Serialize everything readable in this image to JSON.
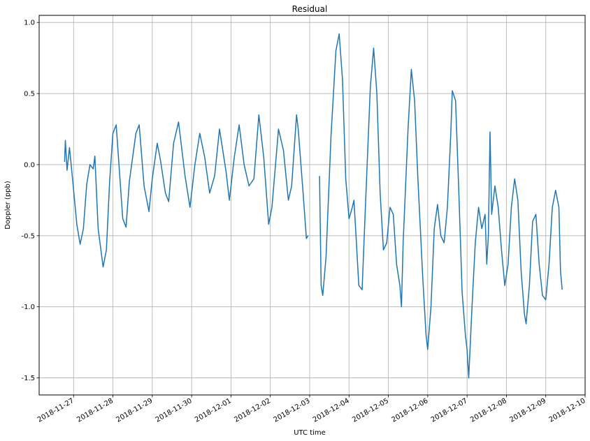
{
  "chart_data": {
    "type": "line",
    "title": "Residual",
    "xlabel": "UTC time",
    "ylabel": "Doppler (ppb)",
    "x_axis_type": "date",
    "xlim": [
      "2018-11-26 03:00",
      "2018-12-10 00:00"
    ],
    "ylim": [
      -1.62,
      1.05
    ],
    "xticks": [
      "2018-11-27",
      "2018-11-28",
      "2018-11-29",
      "2018-11-30",
      "2018-12-01",
      "2018-12-02",
      "2018-12-03",
      "2018-12-04",
      "2018-12-05",
      "2018-12-06",
      "2018-12-07",
      "2018-12-08",
      "2018-12-09",
      "2018-12-10"
    ],
    "yticks": [
      1.0,
      0.5,
      0.0,
      -0.5,
      -1.0,
      -1.5
    ],
    "grid": true,
    "series": [
      {
        "name": "",
        "color": "#1f77b4",
        "segments": [
          [
            [
              "2018-11-26 18:30",
              0.02
            ],
            [
              "2018-11-26 19:00",
              0.17
            ],
            [
              "2018-11-26 20:00",
              -0.04
            ],
            [
              "2018-11-26 21:30",
              0.12
            ],
            [
              "2018-11-27 00:00",
              -0.18
            ],
            [
              "2018-11-27 02:00",
              -0.42
            ],
            [
              "2018-11-27 04:00",
              -0.56
            ],
            [
              "2018-11-27 06:00",
              -0.45
            ],
            [
              "2018-11-27 08:00",
              -0.14
            ],
            [
              "2018-11-27 10:00",
              0.0
            ],
            [
              "2018-11-27 12:00",
              -0.03
            ],
            [
              "2018-11-27 13:00",
              0.06
            ],
            [
              "2018-11-27 15:00",
              -0.45
            ],
            [
              "2018-11-27 18:00",
              -0.72
            ],
            [
              "2018-11-27 20:00",
              -0.6
            ],
            [
              "2018-11-27 22:00",
              -0.12
            ],
            [
              "2018-11-28 00:00",
              0.22
            ],
            [
              "2018-11-28 02:00",
              0.28
            ],
            [
              "2018-11-28 06:00",
              -0.38
            ],
            [
              "2018-11-28 08:00",
              -0.44
            ],
            [
              "2018-11-28 10:00",
              -0.12
            ],
            [
              "2018-11-28 14:00",
              0.22
            ],
            [
              "2018-11-28 16:00",
              0.28
            ],
            [
              "2018-11-28 19:00",
              -0.15
            ],
            [
              "2018-11-28 22:00",
              -0.33
            ],
            [
              "2018-11-29 00:00",
              -0.1
            ],
            [
              "2018-11-29 03:00",
              0.15
            ],
            [
              "2018-11-29 05:00",
              0.03
            ],
            [
              "2018-11-29 08:00",
              -0.2
            ],
            [
              "2018-11-29 10:00",
              -0.26
            ],
            [
              "2018-11-29 13:00",
              0.15
            ],
            [
              "2018-11-29 16:00",
              0.3
            ],
            [
              "2018-11-29 20:00",
              -0.08
            ],
            [
              "2018-11-29 23:00",
              -0.3
            ],
            [
              "2018-11-30 02:00",
              0.0
            ],
            [
              "2018-11-30 05:00",
              0.22
            ],
            [
              "2018-11-30 08:00",
              0.05
            ],
            [
              "2018-11-30 11:00",
              -0.2
            ],
            [
              "2018-11-30 14:00",
              -0.08
            ],
            [
              "2018-11-30 17:00",
              0.25
            ],
            [
              "2018-11-30 21:00",
              -0.05
            ],
            [
              "2018-11-30 23:00",
              -0.25
            ],
            [
              "2018-12-01 02:00",
              0.05
            ],
            [
              "2018-12-01 05:00",
              0.28
            ],
            [
              "2018-12-01 08:00",
              0.0
            ],
            [
              "2018-12-01 11:00",
              -0.15
            ],
            [
              "2018-12-01 14:00",
              -0.1
            ],
            [
              "2018-12-01 17:00",
              0.35
            ],
            [
              "2018-12-01 20:00",
              0.05
            ],
            [
              "2018-12-01 23:00",
              -0.42
            ],
            [
              "2018-12-02 01:00",
              -0.3
            ],
            [
              "2018-12-02 05:00",
              0.25
            ],
            [
              "2018-12-02 08:00",
              0.1
            ],
            [
              "2018-12-02 11:00",
              -0.25
            ],
            [
              "2018-12-02 13:00",
              -0.15
            ],
            [
              "2018-12-02 16:00",
              0.35
            ],
            [
              "2018-12-02 17:00",
              0.25
            ],
            [
              "2018-12-02 20:00",
              -0.2
            ],
            [
              "2018-12-02 22:00",
              -0.52
            ],
            [
              "2018-12-02 23:00",
              -0.5
            ]
          ],
          [
            [
              "2018-12-03 06:00",
              -0.08
            ],
            [
              "2018-12-03 07:00",
              -0.85
            ],
            [
              "2018-12-03 08:00",
              -0.92
            ],
            [
              "2018-12-03 10:00",
              -0.65
            ],
            [
              "2018-12-03 13:00",
              0.2
            ],
            [
              "2018-12-03 16:00",
              0.8
            ],
            [
              "2018-12-03 18:00",
              0.92
            ],
            [
              "2018-12-03 20:00",
              0.6
            ],
            [
              "2018-12-03 22:00",
              -0.1
            ],
            [
              "2018-12-04 00:00",
              -0.38
            ],
            [
              "2018-12-04 02:00",
              -0.3
            ],
            [
              "2018-12-04 03:00",
              -0.25
            ],
            [
              "2018-12-04 04:00",
              -0.45
            ],
            [
              "2018-12-04 06:00",
              -0.85
            ],
            [
              "2018-12-04 08:00",
              -0.88
            ],
            [
              "2018-12-04 10:00",
              -0.3
            ],
            [
              "2018-12-04 13:00",
              0.55
            ],
            [
              "2018-12-04 15:00",
              0.82
            ],
            [
              "2018-12-04 17:00",
              0.5
            ],
            [
              "2018-12-04 19:00",
              -0.2
            ],
            [
              "2018-12-04 21:00",
              -0.6
            ],
            [
              "2018-12-04 23:00",
              -0.55
            ],
            [
              "2018-12-05 01:00",
              -0.3
            ],
            [
              "2018-12-05 03:00",
              -0.35
            ],
            [
              "2018-12-05 05:00",
              -0.7
            ],
            [
              "2018-12-05 07:00",
              -0.85
            ],
            [
              "2018-12-05 08:00",
              -1.0
            ],
            [
              "2018-12-05 09:00",
              -0.55
            ],
            [
              "2018-12-05 12:00",
              0.25
            ],
            [
              "2018-12-05 14:00",
              0.67
            ],
            [
              "2018-12-05 16:00",
              0.45
            ],
            [
              "2018-12-05 18:00",
              -0.1
            ],
            [
              "2018-12-05 21:00",
              -0.8
            ],
            [
              "2018-12-05 23:00",
              -1.2
            ],
            [
              "2018-12-06 00:00",
              -1.3
            ],
            [
              "2018-12-06 02:00",
              -1.0
            ],
            [
              "2018-12-06 04:00",
              -0.45
            ],
            [
              "2018-12-06 06:00",
              -0.28
            ],
            [
              "2018-12-06 08:00",
              -0.5
            ],
            [
              "2018-12-06 10:00",
              -0.55
            ],
            [
              "2018-12-06 12:00",
              -0.3
            ],
            [
              "2018-12-06 14:00",
              0.2
            ],
            [
              "2018-12-06 15:00",
              0.52
            ],
            [
              "2018-12-06 17:00",
              0.45
            ],
            [
              "2018-12-06 19:00",
              -0.2
            ],
            [
              "2018-12-06 21:00",
              -0.9
            ],
            [
              "2018-12-06 23:00",
              -1.2
            ],
            [
              "2018-12-07 00:00",
              -1.3
            ],
            [
              "2018-12-07 01:00",
              -1.5
            ],
            [
              "2018-12-07 03:00",
              -1.0
            ],
            [
              "2018-12-07 05:00",
              -0.55
            ],
            [
              "2018-12-07 07:00",
              -0.3
            ],
            [
              "2018-12-07 09:00",
              -0.45
            ],
            [
              "2018-12-07 11:00",
              -0.35
            ],
            [
              "2018-12-07 12:00",
              -0.7
            ],
            [
              "2018-12-07 13:00",
              -0.5
            ],
            [
              "2018-12-07 14:00",
              0.23
            ],
            [
              "2018-12-07 15:00",
              -0.35
            ],
            [
              "2018-12-07 17:00",
              -0.15
            ],
            [
              "2018-12-07 19:00",
              -0.3
            ],
            [
              "2018-12-07 21:00",
              -0.6
            ],
            [
              "2018-12-07 23:00",
              -0.85
            ],
            [
              "2018-12-08 01:00",
              -0.7
            ],
            [
              "2018-12-08 03:00",
              -0.3
            ],
            [
              "2018-12-08 05:00",
              -0.1
            ],
            [
              "2018-12-08 07:00",
              -0.25
            ],
            [
              "2018-12-08 09:00",
              -0.75
            ],
            [
              "2018-12-08 11:00",
              -1.05
            ],
            [
              "2018-12-08 12:00",
              -1.12
            ],
            [
              "2018-12-08 14:00",
              -0.85
            ],
            [
              "2018-12-08 16:00",
              -0.4
            ],
            [
              "2018-12-08 18:00",
              -0.35
            ],
            [
              "2018-12-08 20:00",
              -0.7
            ],
            [
              "2018-12-08 22:00",
              -0.92
            ],
            [
              "2018-12-09 00:00",
              -0.95
            ],
            [
              "2018-12-09 02:00",
              -0.7
            ],
            [
              "2018-12-09 04:00",
              -0.3
            ],
            [
              "2018-12-09 06:00",
              -0.18
            ],
            [
              "2018-12-09 08:00",
              -0.3
            ],
            [
              "2018-12-09 09:00",
              -0.75
            ],
            [
              "2018-12-09 10:00",
              -0.88
            ]
          ]
        ]
      }
    ]
  }
}
